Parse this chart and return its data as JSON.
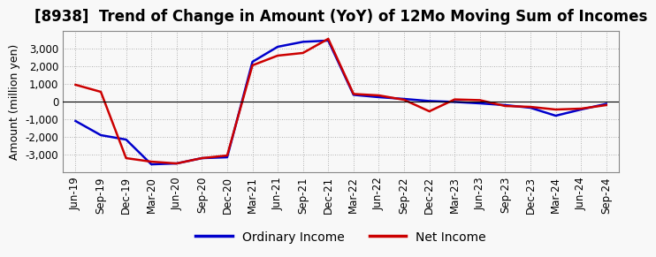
{
  "title": "[8938]  Trend of Change in Amount (YoY) of 12Mo Moving Sum of Incomes",
  "ylabel": "Amount (million yen)",
  "x_labels": [
    "Jun-19",
    "Sep-19",
    "Dec-19",
    "Mar-20",
    "Jun-20",
    "Sep-20",
    "Dec-20",
    "Mar-21",
    "Jun-21",
    "Sep-21",
    "Dec-21",
    "Mar-22",
    "Jun-22",
    "Sep-22",
    "Dec-22",
    "Mar-23",
    "Jun-23",
    "Sep-23",
    "Dec-23",
    "Mar-24",
    "Jun-24",
    "Sep-24"
  ],
  "ordinary_income": [
    -1100,
    -1900,
    -2150,
    -3550,
    -3500,
    -3200,
    -3150,
    2250,
    3100,
    3380,
    3450,
    380,
    250,
    150,
    30,
    -20,
    -100,
    -200,
    -350,
    -800,
    -450,
    -130
  ],
  "net_income": [
    950,
    550,
    -3200,
    -3400,
    -3500,
    -3200,
    -3050,
    2050,
    2600,
    2750,
    3550,
    430,
    350,
    100,
    -550,
    120,
    80,
    -250,
    -300,
    -450,
    -400,
    -200
  ],
  "ordinary_income_color": "#0000cc",
  "net_income_color": "#cc0000",
  "line_width": 1.8,
  "bg_color": "#f8f8f8",
  "plot_bg_color": "#f8f8f8",
  "grid_color": "#999999",
  "ylim": [
    -4000,
    4000
  ],
  "yticks": [
    -3000,
    -2000,
    -1000,
    0,
    1000,
    2000,
    3000
  ],
  "legend_labels": [
    "Ordinary Income",
    "Net Income"
  ],
  "title_fontsize": 12,
  "axis_label_fontsize": 9,
  "tick_fontsize": 8.5,
  "legend_fontsize": 10
}
